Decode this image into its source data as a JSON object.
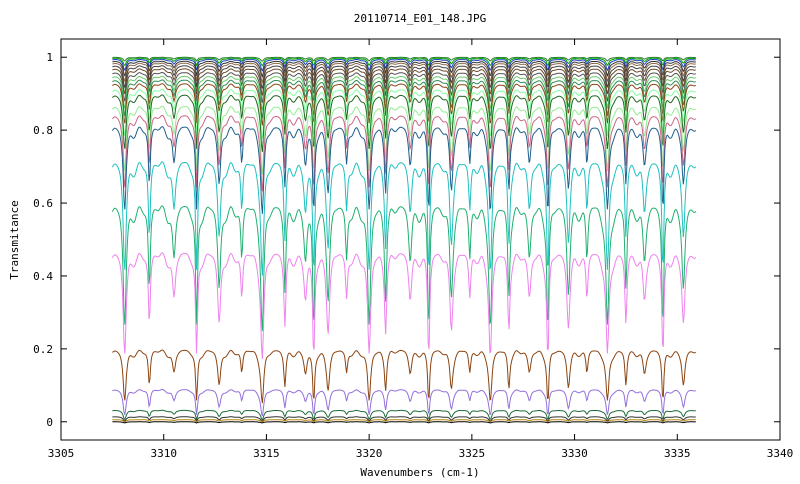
{
  "chart_data": {
    "type": "line",
    "title": "20110714_E01_148.JPG",
    "xlabel": "Wavenumbers (cm-1)",
    "ylabel": "Transmitance",
    "xlim": [
      3305,
      3340
    ],
    "ylim": [
      -0.05,
      1.05
    ],
    "x_ticks": [
      3305,
      3310,
      3315,
      3320,
      3325,
      3330,
      3335,
      3340
    ],
    "y_ticks": [
      0,
      0.2,
      0.4,
      0.6,
      0.8,
      1
    ],
    "x_tick_labels": [
      "3305",
      "3310",
      "3315",
      "3320",
      "3325",
      "3330",
      "3335",
      "3340"
    ],
    "y_tick_labels": [
      "0",
      "0.2",
      "0.4",
      "0.6",
      "0.8",
      "1"
    ],
    "x_range_data": [
      3307.5,
      3335.9
    ],
    "absorption_lines": [
      3308.1,
      3309.3,
      3310.5,
      3311.6,
      3312.7,
      3313.8,
      3314.8,
      3315.9,
      3316.9,
      3317.3,
      3318.0,
      3318.9,
      3320.0,
      3320.8,
      3322.0,
      3322.9,
      3324.0,
      3324.9,
      3325.9,
      3326.8,
      3327.8,
      3328.7,
      3329.7,
      3330.6,
      3331.6,
      3332.5,
      3333.4,
      3334.3,
      3335.3
    ],
    "series": [
      {
        "color": "#2e7d32",
        "baseline": 1.0,
        "depth": 0.01
      },
      {
        "color": "#00a000",
        "baseline": 0.998,
        "depth": 0.02
      },
      {
        "color": "#1a3fbf",
        "baseline": 0.995,
        "depth": 0.03
      },
      {
        "color": "#303030",
        "baseline": 0.99,
        "depth": 0.04
      },
      {
        "color": "#8a6a4a",
        "baseline": 0.985,
        "depth": 0.05
      },
      {
        "color": "#404040",
        "baseline": 0.978,
        "depth": 0.06
      },
      {
        "color": "#6b4a2a",
        "baseline": 0.97,
        "depth": 0.07
      },
      {
        "color": "#505050",
        "baseline": 0.96,
        "depth": 0.08
      },
      {
        "color": "#66cc66",
        "baseline": 0.95,
        "depth": 0.09
      },
      {
        "color": "#2e8b57",
        "baseline": 0.94,
        "depth": 0.1
      },
      {
        "color": "#8b4513",
        "baseline": 0.93,
        "depth": 0.11
      },
      {
        "color": "#7fffa0",
        "baseline": 0.915,
        "depth": 0.13
      },
      {
        "color": "#226622",
        "baseline": 0.9,
        "depth": 0.15
      },
      {
        "color": "#90ee90",
        "baseline": 0.87,
        "depth": 0.18
      },
      {
        "color": "#cc6688",
        "baseline": 0.845,
        "depth": 0.2
      },
      {
        "color": "#1f5f8b",
        "baseline": 0.815,
        "depth": 0.23
      },
      {
        "color": "#20c0c0",
        "baseline": 0.72,
        "depth": 0.3
      },
      {
        "color": "#20b070",
        "baseline": 0.6,
        "depth": 0.33
      },
      {
        "color": "#ee82ee",
        "baseline": 0.47,
        "depth": 0.28
      },
      {
        "color": "#8b4513",
        "baseline": 0.2,
        "depth": 0.14
      },
      {
        "color": "#9370db",
        "baseline": 0.09,
        "depth": 0.07
      },
      {
        "color": "#1e6b3a",
        "baseline": 0.032,
        "depth": 0.025
      },
      {
        "color": "#303030",
        "baseline": 0.014,
        "depth": 0.012
      },
      {
        "color": "#b8860b",
        "baseline": 0.006,
        "depth": 0.006
      },
      {
        "color": "#000000",
        "baseline": 0.0,
        "depth": 0.003
      }
    ]
  }
}
